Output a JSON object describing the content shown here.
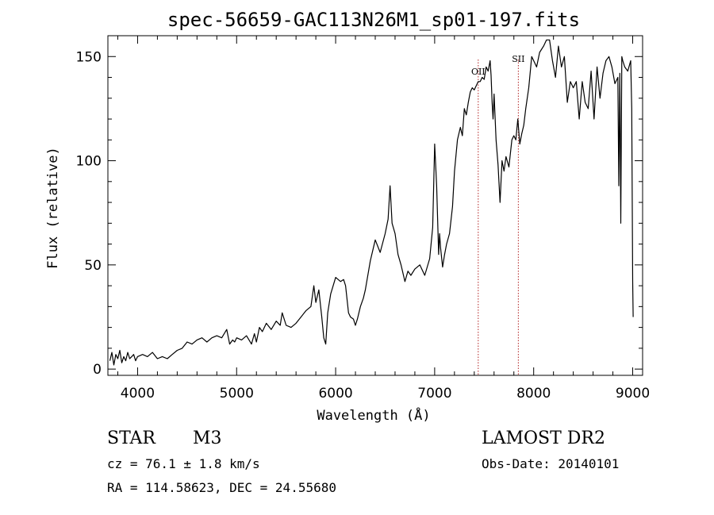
{
  "chart_data": {
    "type": "line",
    "title": "spec-56659-GAC113N26M1_sp01-197.fits",
    "xlabel": "Wavelength (Å)",
    "ylabel": "Flux (relative)",
    "xlim": [
      3700,
      9100
    ],
    "ylim": [
      -3,
      160
    ],
    "x_ticks": [
      4000,
      5000,
      6000,
      7000,
      8000,
      9000
    ],
    "y_ticks": [
      0,
      50,
      100,
      150
    ],
    "line_markers": [
      {
        "label": "OII",
        "x": 7440
      },
      {
        "label": "SII",
        "x": 7845
      }
    ],
    "marker_color": "#b22222",
    "series": [
      {
        "x": [
          3720,
          3740,
          3760,
          3780,
          3800,
          3820,
          3840,
          3860,
          3880,
          3900,
          3920,
          3940,
          3960,
          3980,
          4000,
          4050,
          4100,
          4150,
          4200,
          4250,
          4300,
          4350,
          4400,
          4450,
          4500,
          4550,
          4600,
          4650,
          4700,
          4750,
          4800,
          4850,
          4900,
          4930,
          4960,
          4980,
          5000,
          5050,
          5100,
          5150,
          5180,
          5200,
          5230,
          5260,
          5300,
          5350,
          5400,
          5440,
          5460,
          5500,
          5550,
          5600,
          5650,
          5700,
          5750,
          5780,
          5800,
          5830,
          5860,
          5880,
          5900,
          5920,
          5950,
          6000,
          6050,
          6080,
          6100,
          6130,
          6150,
          6180,
          6200,
          6220,
          6250,
          6280,
          6300,
          6350,
          6400,
          6450,
          6500,
          6530,
          6550,
          6570,
          6600,
          6630,
          6660,
          6700,
          6730,
          6760,
          6800,
          6850,
          6900,
          6950,
          6980,
          7000,
          7020,
          7040,
          7050,
          7060,
          7080,
          7100,
          7120,
          7150,
          7180,
          7200,
          7230,
          7260,
          7280,
          7300,
          7320,
          7340,
          7360,
          7380,
          7400,
          7420,
          7440,
          7460,
          7480,
          7500,
          7520,
          7540,
          7560,
          7570,
          7580,
          7590,
          7600,
          7620,
          7640,
          7660,
          7680,
          7700,
          7720,
          7750,
          7780,
          7800,
          7820,
          7840,
          7860,
          7880,
          7900,
          7920,
          7950,
          7980,
          8000,
          8030,
          8060,
          8100,
          8130,
          8160,
          8190,
          8220,
          8250,
          8280,
          8310,
          8340,
          8370,
          8400,
          8430,
          8460,
          8490,
          8520,
          8550,
          8580,
          8610,
          8640,
          8670,
          8700,
          8730,
          8760,
          8790,
          8820,
          8850,
          8860,
          8870,
          8880,
          8890,
          8900,
          8920,
          8950,
          8980,
          8990,
          9000,
          9005
        ],
        "values": [
          4,
          8,
          2,
          7,
          5,
          9,
          3,
          6,
          4,
          8,
          5,
          6,
          7,
          4,
          6,
          7,
          6,
          8,
          5,
          6,
          5,
          7,
          9,
          10,
          13,
          12,
          14,
          15,
          13,
          15,
          16,
          15,
          19,
          12,
          14,
          13,
          15,
          14,
          16,
          12,
          17,
          13,
          20,
          18,
          22,
          19,
          23,
          21,
          27,
          21,
          20,
          22,
          25,
          28,
          30,
          40,
          32,
          38,
          25,
          15,
          12,
          27,
          36,
          44,
          42,
          43,
          40,
          27,
          25,
          24,
          21,
          24,
          30,
          34,
          38,
          52,
          62,
          56,
          65,
          72,
          88,
          70,
          65,
          55,
          50,
          42,
          47,
          45,
          48,
          50,
          45,
          53,
          68,
          108,
          88,
          55,
          65,
          58,
          49,
          55,
          60,
          65,
          78,
          95,
          110,
          116,
          112,
          125,
          122,
          128,
          133,
          135,
          134,
          136,
          138,
          138,
          140,
          139,
          145,
          143,
          148,
          141,
          128,
          120,
          132,
          110,
          98,
          80,
          100,
          95,
          102,
          97,
          110,
          112,
          110,
          120,
          108,
          113,
          117,
          125,
          135,
          150,
          148,
          145,
          152,
          155,
          158,
          158,
          148,
          140,
          155,
          145,
          150,
          128,
          138,
          135,
          138,
          120,
          138,
          128,
          125,
          143,
          120,
          145,
          130,
          142,
          148,
          150,
          145,
          137,
          140,
          88,
          142,
          70,
          150,
          148,
          145,
          143,
          148,
          125,
          42,
          25
        ]
      }
    ]
  },
  "info": {
    "object_class": "STAR",
    "subclass": "M3",
    "survey": "LAMOST DR2",
    "cz": "cz = 76.1 ± 1.8 km/s",
    "obs_date": "Obs-Date: 20140101",
    "coords": "RA = 114.58623, DEC =  24.55680"
  }
}
